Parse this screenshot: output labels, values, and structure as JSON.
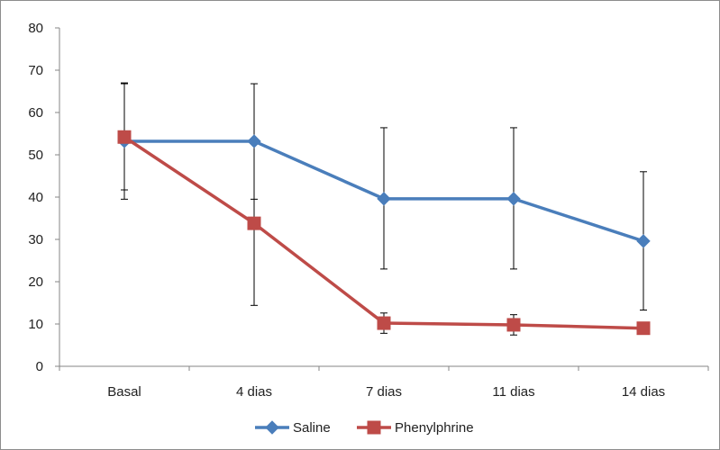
{
  "chart_data": {
    "type": "line",
    "categories": [
      "Basal",
      "4 dias",
      "7 dias",
      "11 dias",
      "14 dias"
    ],
    "ylim": [
      0,
      80
    ],
    "yticks": [
      0,
      10,
      20,
      30,
      40,
      50,
      60,
      70,
      80
    ],
    "grid": false,
    "legend": "bottom",
    "series": [
      {
        "name": "Saline",
        "color": "#4a7ebb",
        "marker": "diamond",
        "values": [
          53.2,
          53.2,
          39.6,
          39.6,
          29.6
        ],
        "err_low": [
          39.5,
          39.5,
          23,
          23,
          13.3
        ],
        "err_high": [
          67,
          66.8,
          56.4,
          56.4,
          46
        ]
      },
      {
        "name": "Phenylphrine",
        "color": "#be4b48",
        "marker": "square",
        "values": [
          54.2,
          33.8,
          10.2,
          9.8,
          9
        ],
        "err_low": [
          41.7,
          14.4,
          7.8,
          7.4,
          9
        ],
        "err_high": [
          66.8,
          53.2,
          12.6,
          12.2,
          9
        ]
      }
    ]
  }
}
